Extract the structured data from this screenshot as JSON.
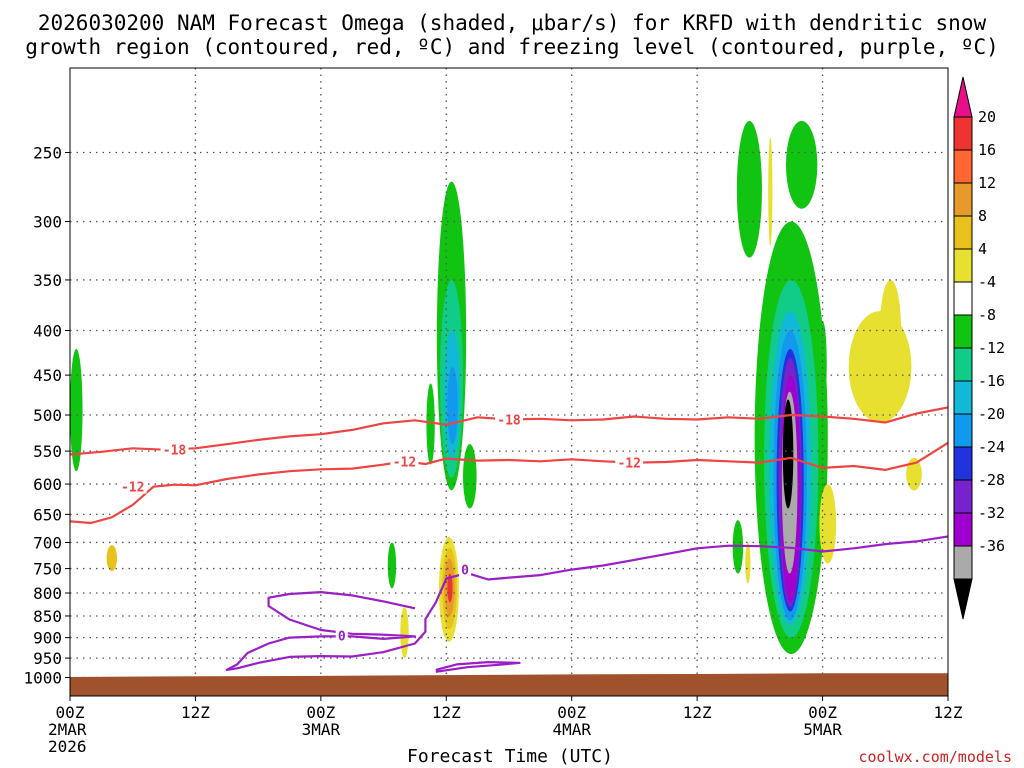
{
  "chart_data": {
    "type": "heatmap",
    "title_lines": [
      "2026030200 NAM Forecast Omega (shaded, μbar/s) for KRFD with dendritic snow",
      "growth region (contoured, red, ºC) and freezing level (contoured, purple, ºC)"
    ],
    "xlabel": "Forecast Time (UTC)",
    "ylabel": "",
    "credit": "coolwx.com/models",
    "x_range_hours": [
      0,
      84
    ],
    "x_ticks": [
      {
        "hour": 0,
        "lines": [
          "00Z",
          "2MAR",
          "2026"
        ]
      },
      {
        "hour": 12,
        "lines": [
          "12Z"
        ]
      },
      {
        "hour": 24,
        "lines": [
          "00Z",
          "3MAR"
        ]
      },
      {
        "hour": 36,
        "lines": [
          "12Z"
        ]
      },
      {
        "hour": 48,
        "lines": [
          "00Z",
          "4MAR"
        ]
      },
      {
        "hour": 60,
        "lines": [
          "12Z"
        ]
      },
      {
        "hour": 72,
        "lines": [
          "00Z",
          "5MAR"
        ]
      },
      {
        "hour": 84,
        "lines": [
          "12Z"
        ]
      }
    ],
    "y_range_hpa": [
      1050,
      200
    ],
    "y_ticks": [
      250,
      300,
      350,
      400,
      450,
      500,
      550,
      600,
      650,
      700,
      750,
      800,
      850,
      900,
      950,
      1000
    ],
    "colorbar": {
      "labels": [
        "20",
        "16",
        "12",
        "8",
        "4",
        "-4",
        "-8",
        "-12",
        "-16",
        "-20",
        "-24",
        "-28",
        "-32",
        "-36"
      ],
      "bins": [
        {
          "lo": 16,
          "hi": 20,
          "color": "#ee3333"
        },
        {
          "lo": 12,
          "hi": 16,
          "color": "#ff6633"
        },
        {
          "lo": 8,
          "hi": 12,
          "color": "#e69a2a"
        },
        {
          "lo": 4,
          "hi": 8,
          "color": "#e8c21c"
        },
        {
          "lo": -4,
          "hi": 4,
          "color": "#e8e030"
        },
        {
          "lo": -8,
          "hi": -4,
          "color": "#ffffff"
        },
        {
          "lo": -12,
          "hi": -8,
          "color": "#11c411"
        },
        {
          "lo": -16,
          "hi": -12,
          "color": "#11cc88"
        },
        {
          "lo": -20,
          "hi": -16,
          "color": "#11b8d8"
        },
        {
          "lo": -24,
          "hi": -20,
          "color": "#1199ee"
        },
        {
          "lo": -28,
          "hi": -24,
          "color": "#2233dd"
        },
        {
          "lo": -32,
          "hi": -28,
          "color": "#7722cc"
        },
        {
          "lo": -36,
          "hi": -32,
          "color": "#a000d0"
        },
        {
          "lo": -40,
          "hi": -36,
          "color": "#aaaaaa"
        }
      ],
      "top_arrow_color": "#e8108a",
      "bottom_arrow_color": "#000000"
    },
    "isotherm_labels": {
      "minus18": "-18",
      "minus12": "-12",
      "zero": "0"
    },
    "contours": [
      {
        "name": "minus18-isotherm",
        "label": "-18",
        "color": "#ee4444",
        "points": [
          [
            0,
            555
          ],
          [
            3,
            551
          ],
          [
            6,
            546
          ],
          [
            9,
            548
          ],
          [
            12,
            546
          ],
          [
            15,
            540
          ],
          [
            18,
            534
          ],
          [
            21,
            529
          ],
          [
            24,
            526
          ],
          [
            27,
            520
          ],
          [
            30,
            511
          ],
          [
            33,
            507
          ],
          [
            36,
            513
          ],
          [
            39,
            503
          ],
          [
            42,
            506
          ],
          [
            45,
            505
          ],
          [
            48,
            507
          ],
          [
            51,
            506
          ],
          [
            54,
            502
          ],
          [
            57,
            505
          ],
          [
            60,
            506
          ],
          [
            63,
            503
          ],
          [
            66,
            505
          ],
          [
            69,
            500
          ],
          [
            72,
            502
          ],
          [
            75,
            505
          ],
          [
            78,
            510
          ],
          [
            81,
            498
          ],
          [
            84,
            490
          ]
        ]
      },
      {
        "name": "minus12-isotherm",
        "label": "-12",
        "color": "#ee4444",
        "points": [
          [
            0,
            662
          ],
          [
            2,
            665
          ],
          [
            4,
            655
          ],
          [
            6,
            634
          ],
          [
            8,
            604
          ],
          [
            10,
            601
          ],
          [
            12,
            602
          ],
          [
            15,
            592
          ],
          [
            18,
            585
          ],
          [
            21,
            580
          ],
          [
            24,
            577
          ],
          [
            27,
            576
          ],
          [
            30,
            570
          ],
          [
            32,
            565
          ],
          [
            34,
            569
          ],
          [
            36,
            561
          ],
          [
            39,
            564
          ],
          [
            42,
            563
          ],
          [
            45,
            565
          ],
          [
            48,
            562
          ],
          [
            51,
            565
          ],
          [
            54,
            567
          ],
          [
            57,
            566
          ],
          [
            60,
            563
          ],
          [
            63,
            565
          ],
          [
            66,
            567
          ],
          [
            69,
            560
          ],
          [
            72,
            575
          ],
          [
            75,
            572
          ],
          [
            78,
            578
          ],
          [
            81,
            567
          ],
          [
            84,
            538
          ]
        ]
      },
      {
        "name": "freezing-level",
        "label": "0",
        "color": "#9a1fc4",
        "points": [
          [
            33,
            833
          ],
          [
            30,
            818
          ],
          [
            27,
            805
          ],
          [
            24,
            798
          ],
          [
            21,
            802
          ],
          [
            19,
            810
          ],
          [
            19,
            828
          ],
          [
            21,
            858
          ],
          [
            24,
            882
          ],
          [
            27,
            891
          ],
          [
            30,
            893
          ],
          [
            33,
            897
          ],
          [
            30,
            903
          ],
          [
            27,
            897
          ],
          [
            24,
            897
          ],
          [
            21,
            900
          ],
          [
            19,
            914
          ],
          [
            17,
            937
          ],
          [
            16,
            966
          ],
          [
            15,
            980
          ],
          [
            16,
            976
          ],
          [
            18,
            962
          ],
          [
            21,
            947
          ],
          [
            24,
            945
          ],
          [
            27,
            946
          ],
          [
            30,
            935
          ],
          [
            33,
            914
          ],
          [
            34,
            886
          ],
          [
            34,
            857
          ],
          [
            35,
            820
          ],
          [
            36,
            770
          ],
          [
            38,
            759
          ],
          [
            40,
            772
          ],
          [
            42,
            768
          ],
          [
            45,
            763
          ],
          [
            48,
            752
          ],
          [
            51,
            744
          ],
          [
            54,
            733
          ],
          [
            57,
            722
          ],
          [
            60,
            711
          ],
          [
            63,
            706
          ],
          [
            66,
            707
          ],
          [
            69,
            710
          ],
          [
            72,
            717
          ],
          [
            75,
            711
          ],
          [
            78,
            703
          ],
          [
            81,
            698
          ],
          [
            84,
            689
          ]
        ]
      },
      {
        "name": "freezing-level-lower",
        "label": "",
        "color": "#9a1fc4",
        "points": [
          [
            35,
            985
          ],
          [
            38,
            973
          ],
          [
            41,
            967
          ],
          [
            43,
            962
          ],
          [
            40,
            960
          ],
          [
            37,
            966
          ],
          [
            35,
            980
          ]
        ]
      }
    ],
    "omega_regions": [
      {
        "color": "#11c411",
        "h": [
          0,
          1.2
        ],
        "p": [
          420,
          580
        ]
      },
      {
        "color": "#e8c21c",
        "h": [
          3.5,
          4.5
        ],
        "p": [
          705,
          755
        ]
      },
      {
        "color": "#11c411",
        "h": [
          30.4,
          31.2
        ],
        "p": [
          700,
          790
        ]
      },
      {
        "color": "#11c411",
        "h": [
          34.1,
          34.9
        ],
        "p": [
          460,
          570
        ]
      },
      {
        "color": "#11c411",
        "h": [
          35.1,
          37.9
        ],
        "p": [
          270,
          610
        ]
      },
      {
        "color": "#11cc88",
        "h": [
          35.4,
          37.6
        ],
        "p": [
          350,
          590
        ]
      },
      {
        "color": "#11b8d8",
        "h": [
          35.8,
          37.3
        ],
        "p": [
          400,
          560
        ]
      },
      {
        "color": "#1199ee",
        "h": [
          36.1,
          37.1
        ],
        "p": [
          440,
          540
        ]
      },
      {
        "color": "#e8e030",
        "h": [
          35.3,
          37.2
        ],
        "p": [
          690,
          910
        ]
      },
      {
        "color": "#e8c21c",
        "h": [
          35.6,
          37.0
        ],
        "p": [
          710,
          880
        ]
      },
      {
        "color": "#e69a2a",
        "h": [
          35.8,
          36.8
        ],
        "p": [
          730,
          850
        ]
      },
      {
        "color": "#ee3333",
        "h": [
          36.1,
          36.6
        ],
        "p": [
          760,
          820
        ]
      },
      {
        "color": "#11c411",
        "h": [
          37.6,
          38.9
        ],
        "p": [
          540,
          640
        ]
      },
      {
        "color": "#e8e030",
        "h": [
          31.6,
          32.4
        ],
        "p": [
          830,
          950
        ]
      },
      {
        "color": "#11c411",
        "h": [
          63.8,
          66.2
        ],
        "p": [
          230,
          330
        ]
      },
      {
        "color": "#11c411",
        "h": [
          68.5,
          71.5
        ],
        "p": [
          230,
          290
        ]
      },
      {
        "color": "#11c411",
        "h": [
          63.4,
          64.4
        ],
        "p": [
          660,
          760
        ]
      },
      {
        "color": "#e8e030",
        "h": [
          64.6,
          65.1
        ],
        "p": [
          700,
          780
        ]
      },
      {
        "color": "#e8e030",
        "h": [
          66.8,
          67.2
        ],
        "p": [
          240,
          320
        ]
      },
      {
        "color": "#e8e030",
        "h": [
          66.6,
          67.1
        ],
        "p": [
          660,
          720
        ]
      },
      {
        "color": "#11c411",
        "h": [
          65.5,
          72.5
        ],
        "p": [
          300,
          940
        ]
      },
      {
        "color": "#11cc88",
        "h": [
          66.4,
          71.6
        ],
        "p": [
          350,
          900
        ]
      },
      {
        "color": "#11b8d8",
        "h": [
          66.9,
          70.9
        ],
        "p": [
          380,
          870
        ]
      },
      {
        "color": "#1199ee",
        "h": [
          67.3,
          70.5
        ],
        "p": [
          400,
          860
        ]
      },
      {
        "color": "#2233dd",
        "h": [
          67.6,
          70.2
        ],
        "p": [
          420,
          840
        ]
      },
      {
        "color": "#7722cc",
        "h": [
          67.8,
          70.0
        ],
        "p": [
          430,
          830
        ]
      },
      {
        "color": "#a000d0",
        "h": [
          68.0,
          69.9
        ],
        "p": [
          450,
          820
        ]
      },
      {
        "color": "#aaaaaa",
        "h": [
          68.1,
          69.6
        ],
        "p": [
          470,
          760
        ]
      },
      {
        "color": "#000000",
        "h": [
          68.2,
          69.2
        ],
        "p": [
          480,
          640
        ]
      },
      {
        "color": "#11c411",
        "h": [
          71.6,
          72.4
        ],
        "p": [
          390,
          490
        ]
      },
      {
        "color": "#e8e030",
        "h": [
          71.7,
          73.3
        ],
        "p": [
          600,
          740
        ]
      },
      {
        "color": "#e8e030",
        "h": [
          74.5,
          80.5
        ],
        "p": [
          380,
          510
        ]
      },
      {
        "color": "#e8e030",
        "h": [
          77.5,
          79.5
        ],
        "p": [
          350,
          450
        ]
      },
      {
        "color": "#e8e030",
        "h": [
          80,
          81.5
        ],
        "p": [
          560,
          610
        ]
      }
    ],
    "terrain": {
      "color": "#a0522d",
      "top_hpa": [
        [
          0,
          1000
        ],
        [
          12,
          998
        ],
        [
          24,
          997
        ],
        [
          36,
          995
        ],
        [
          48,
          993
        ],
        [
          60,
          992
        ],
        [
          72,
          990
        ],
        [
          84,
          990
        ]
      ]
    }
  }
}
